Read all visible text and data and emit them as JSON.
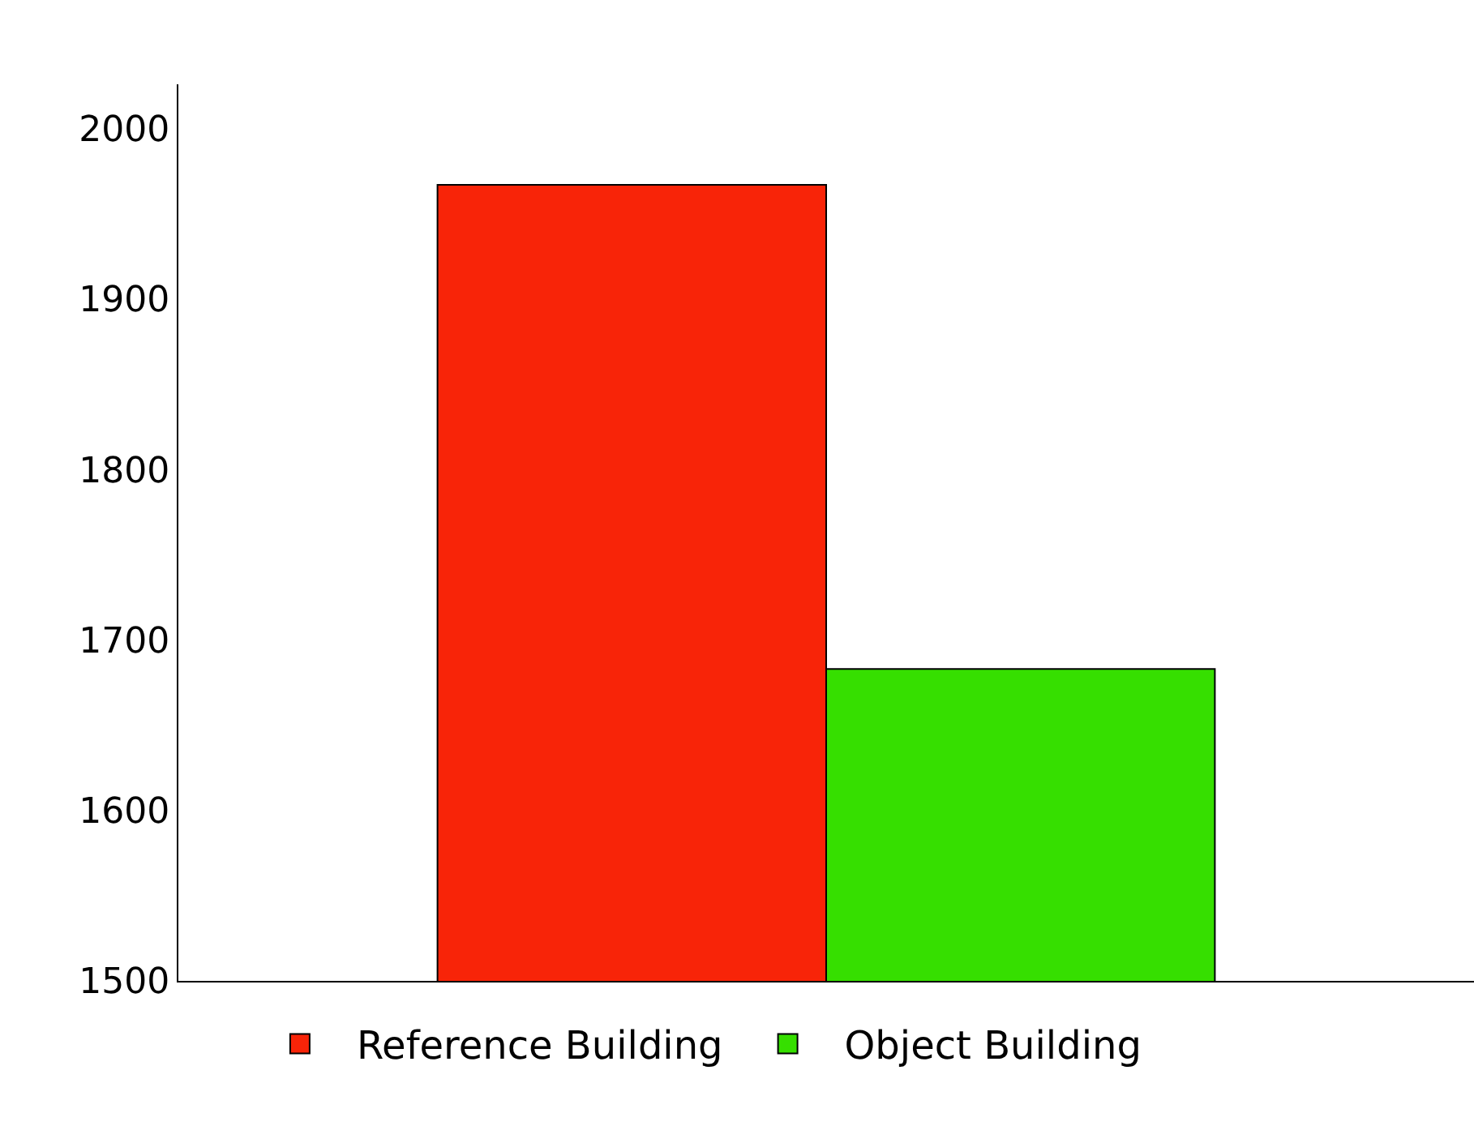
{
  "chart_data": {
    "type": "bar",
    "categories": [
      null
    ],
    "series": [
      {
        "name": "Reference Building",
        "color": "#f82408",
        "values": [
          1967
        ]
      },
      {
        "name": "Object Building",
        "color": "#36df00",
        "values": [
          1683
        ]
      }
    ],
    "ylim": [
      1500,
      2026
    ],
    "yticks": [
      1500,
      1600,
      1700,
      1800,
      1900,
      2000
    ],
    "grid": false,
    "legend": "bottom"
  }
}
